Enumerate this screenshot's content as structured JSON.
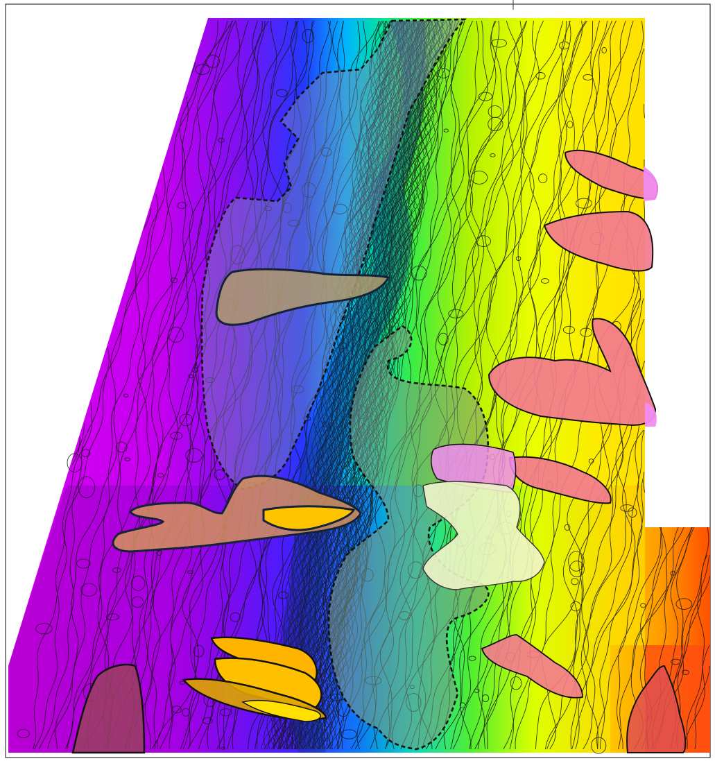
{
  "map": {
    "kind": "seismic horizon structure map with contours and interpreted zones",
    "colors": {
      "ramp": [
        "#e400ff",
        "#b000e0",
        "#6a00f0",
        "#2030ff",
        "#00c8ff",
        "#00e070",
        "#a8f000",
        "#f0ff00",
        "#ffd000",
        "#ff7a00",
        "#ff3000"
      ],
      "contour": "#141414",
      "dashed_outline": "#111111",
      "zone_outline": "#152238",
      "pink_zone": "#f37a8f",
      "magenta_zone": "#f08cf0",
      "olive_zone": "#b09a6e",
      "gray_zone": "#7e8a80",
      "pale_zone": "#eff4c8",
      "gold_zone": "#ffc000"
    },
    "zone_types": [
      "dashed-boundary",
      "pink-lobe",
      "magenta-lobe",
      "olive-fan",
      "gold-body",
      "gray-blue-shelf",
      "gray-green-shelf",
      "pale-lobe"
    ]
  }
}
